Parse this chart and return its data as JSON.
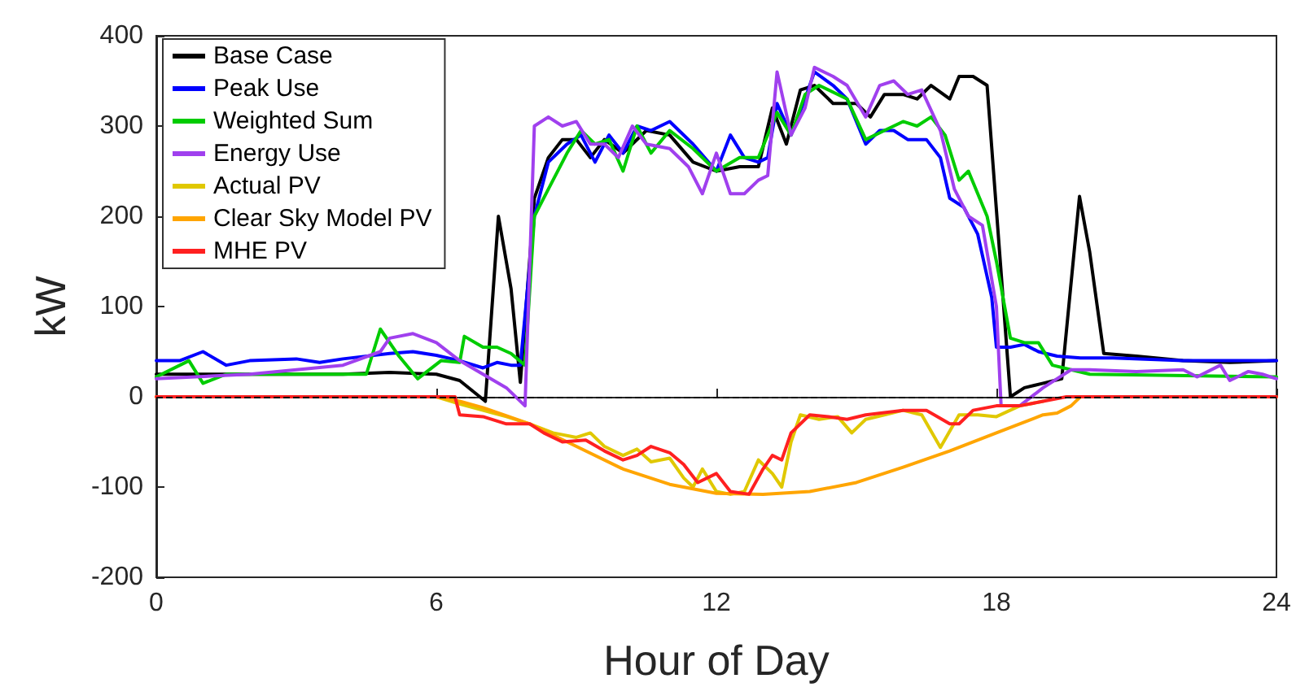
{
  "chart_data": {
    "type": "line",
    "xlabel": "Hour of Day",
    "ylabel": "kW",
    "xlim": [
      0,
      24
    ],
    "xticks": [
      0,
      6,
      12,
      18,
      24
    ],
    "ylim": [
      -200,
      400
    ],
    "yticks": [
      -200,
      -100,
      0,
      100,
      200,
      300,
      400
    ],
    "grid": false,
    "legend": "top left",
    "marker": "none",
    "line_style": "solid",
    "ref_lines": [
      {
        "axis": "y",
        "value": 0,
        "color": "#000000",
        "line_style": "dashed"
      }
    ],
    "series": [
      {
        "name": "Base Case",
        "color": "#000000",
        "x": [
          0,
          2,
          4,
          5,
          6,
          6.5,
          7.05,
          7.33,
          7.6,
          7.8,
          8.1,
          8.4,
          8.7,
          9,
          9.3,
          9.6,
          10,
          10.5,
          11,
          11.5,
          12,
          12.5,
          12.9,
          13.2,
          13.5,
          13.8,
          14.1,
          14.5,
          15,
          15.3,
          15.6,
          16,
          16.3,
          16.6,
          17,
          17.2,
          17.5,
          17.8,
          18.3,
          18.6,
          19,
          19.4,
          19.78,
          20,
          20.3,
          21,
          22,
          23,
          24
        ],
        "values": [
          25,
          25,
          25,
          27,
          25,
          18,
          -5,
          200,
          120,
          16,
          220,
          265,
          285,
          285,
          265,
          285,
          270,
          295,
          290,
          260,
          250,
          255,
          255,
          320,
          280,
          340,
          345,
          325,
          325,
          310,
          335,
          335,
          330,
          345,
          330,
          355,
          355,
          345,
          0,
          10,
          15,
          20,
          222,
          160,
          48,
          45,
          40,
          38,
          40
        ]
      },
      {
        "name": "Peak Use",
        "color": "#0000ff",
        "x": [
          0,
          0.5,
          1,
          1.5,
          2,
          3,
          3.5,
          4,
          5,
          5.5,
          6,
          6.5,
          7,
          7.3,
          7.6,
          7.8,
          8.1,
          8.4,
          8.8,
          9.1,
          9.4,
          9.7,
          10,
          10.3,
          10.6,
          11,
          11.5,
          12,
          12.3,
          12.6,
          12.9,
          13.1,
          13.3,
          13.6,
          13.9,
          14.1,
          14.5,
          14.8,
          15.2,
          15.5,
          15.8,
          16.1,
          16.5,
          16.8,
          17,
          17.3,
          17.6,
          17.9,
          18,
          18.3,
          18.6,
          18.9,
          19.3,
          19.8,
          20.5,
          22,
          24
        ],
        "values": [
          40,
          40,
          50,
          35,
          40,
          42,
          38,
          42,
          48,
          50,
          46,
          40,
          32,
          38,
          35,
          35,
          200,
          260,
          280,
          290,
          260,
          290,
          270,
          300,
          295,
          305,
          280,
          250,
          290,
          265,
          260,
          265,
          325,
          290,
          330,
          360,
          345,
          330,
          280,
          295,
          295,
          285,
          285,
          265,
          220,
          210,
          180,
          110,
          55,
          55,
          58,
          50,
          45,
          43,
          43,
          40,
          40
        ]
      },
      {
        "name": "Weighted Sum",
        "color": "#00cc00",
        "x": [
          0,
          0.7,
          1,
          1.5,
          3,
          4.5,
          4.8,
          5.2,
          5.6,
          6.1,
          6.5,
          6.6,
          7,
          7.3,
          7.6,
          7.9,
          8.1,
          8.4,
          8.8,
          9.1,
          9.4,
          9.7,
          10,
          10.3,
          10.6,
          11,
          11.5,
          12,
          12.5,
          12.9,
          13.3,
          13.6,
          13.9,
          14.2,
          14.8,
          15.2,
          15.6,
          16,
          16.3,
          16.6,
          16.9,
          17.2,
          17.4,
          17.8,
          18,
          18.3,
          18.6,
          18.9,
          19.2,
          19.6,
          20,
          24
        ],
        "values": [
          22,
          40,
          15,
          25,
          25,
          25,
          75,
          45,
          20,
          40,
          38,
          67,
          55,
          55,
          48,
          35,
          200,
          230,
          270,
          295,
          280,
          285,
          250,
          300,
          270,
          295,
          275,
          250,
          265,
          265,
          315,
          290,
          335,
          345,
          330,
          285,
          295,
          305,
          300,
          310,
          290,
          240,
          250,
          200,
          150,
          65,
          60,
          60,
          35,
          30,
          25,
          22
        ]
      },
      {
        "name": "Energy Use",
        "color": "#a040ee",
        "x": [
          0,
          2,
          4,
          4.8,
          5,
          5.5,
          6,
          6.5,
          7,
          7.5,
          7.9,
          8.1,
          8.4,
          8.7,
          9,
          9.3,
          9.6,
          9.9,
          10.2,
          10.5,
          11,
          11.4,
          11.7,
          12,
          12.3,
          12.6,
          12.9,
          13.1,
          13.3,
          13.6,
          13.9,
          14.1,
          14.5,
          14.8,
          15.2,
          15.5,
          15.8,
          16.1,
          16.4,
          16.8,
          17.1,
          17.4,
          17.7,
          18,
          18.1,
          18.5,
          19,
          19.6,
          20,
          21,
          22,
          22.3,
          22.8,
          23,
          23.4,
          23.7,
          24
        ],
        "values": [
          20,
          25,
          35,
          50,
          65,
          70,
          60,
          40,
          25,
          10,
          -10,
          300,
          310,
          300,
          305,
          280,
          280,
          265,
          300,
          280,
          275,
          255,
          225,
          270,
          225,
          225,
          240,
          245,
          360,
          290,
          320,
          365,
          355,
          345,
          310,
          345,
          350,
          335,
          340,
          295,
          230,
          200,
          190,
          100,
          -10,
          -10,
          10,
          30,
          30,
          28,
          30,
          22,
          35,
          18,
          28,
          25,
          20
        ]
      },
      {
        "name": "Actual PV",
        "color": "#e0c800",
        "x": [
          0,
          6,
          6.5,
          7,
          7.5,
          8,
          8.5,
          9,
          9.3,
          9.6,
          10,
          10.3,
          10.6,
          11,
          11.3,
          11.5,
          11.7,
          12,
          12.3,
          12.6,
          12.9,
          13.2,
          13.4,
          13.6,
          13.8,
          14.2,
          14.6,
          14.9,
          15.2,
          15.6,
          16,
          16.4,
          16.8,
          17.2,
          17.6,
          18,
          18.5,
          19
        ],
        "values": [
          0,
          0,
          -8,
          -15,
          -22,
          -30,
          -40,
          -45,
          -40,
          -55,
          -65,
          -58,
          -72,
          -68,
          -90,
          -100,
          -80,
          -105,
          -108,
          -105,
          -70,
          -85,
          -100,
          -50,
          -20,
          -25,
          -22,
          -40,
          -25,
          -20,
          -15,
          -20,
          -56,
          -20,
          -20,
          -22,
          -10,
          -5
        ]
      },
      {
        "name": "Clear Sky Model PV",
        "color": "#ffa500",
        "x": [
          0,
          6,
          6.5,
          7,
          8,
          9,
          10,
          11,
          12,
          13,
          14,
          15,
          16,
          17,
          18,
          19,
          19.3,
          19.6,
          19.8,
          24
        ],
        "values": [
          0,
          0,
          -5,
          -12,
          -30,
          -55,
          -80,
          -97,
          -107,
          -108,
          -105,
          -95,
          -78,
          -60,
          -40,
          -20,
          -18,
          -10,
          0,
          0
        ]
      },
      {
        "name": "MHE PV",
        "color": "#ff2020",
        "x": [
          0,
          6.4,
          6.5,
          7,
          7.5,
          8,
          8.3,
          8.7,
          9.2,
          9.6,
          10,
          10.3,
          10.6,
          11,
          11.3,
          11.6,
          12,
          12.3,
          12.7,
          13,
          13.2,
          13.4,
          13.6,
          14,
          14.4,
          14.8,
          15.2,
          16,
          16.5,
          17,
          17.2,
          17.5,
          18,
          18.5,
          19,
          19.5,
          24
        ],
        "values": [
          0,
          0,
          -20,
          -22,
          -30,
          -30,
          -40,
          -50,
          -48,
          -60,
          -70,
          -65,
          -55,
          -62,
          -75,
          -95,
          -85,
          -105,
          -108,
          -80,
          -65,
          -70,
          -40,
          -20,
          -22,
          -25,
          -20,
          -15,
          -15,
          -30,
          -30,
          -15,
          -10,
          -10,
          -5,
          0,
          0
        ]
      }
    ]
  }
}
